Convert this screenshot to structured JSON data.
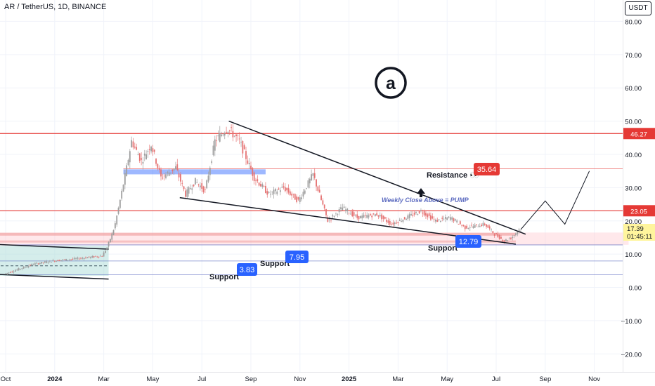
{
  "header": {
    "symbol": "AR / TetherUS, 1D, BINANCE",
    "currency_button": "USDT"
  },
  "colors": {
    "red": "#e53935",
    "blue": "#2962ff",
    "candle_up": "#9e9e9e",
    "candle_down": "#e57373",
    "grid": "#f0f3fa",
    "text": "#131722",
    "price_tag": "#fff59d"
  },
  "logo": {
    "icon": "arweave-logo",
    "glyph": "a"
  },
  "chart_data": {
    "type": "candlestick",
    "x_ticks": [
      "Oct",
      "2024",
      "Mar",
      "May",
      "Jul",
      "Sep",
      "Nov",
      "2025",
      "Mar",
      "May",
      "Jul",
      "Sep",
      "Nov"
    ],
    "y_ticks": [
      "80.00",
      "70.00",
      "60.00",
      "50.00",
      "40.00",
      "30.00",
      "20.00",
      "10.00",
      "0.00",
      "−10.00",
      "−20.00"
    ],
    "ylim": [
      -25,
      86
    ],
    "price_series": [
      {
        "x": 0,
        "y": 4
      },
      {
        "x": 0.3,
        "y": 5.5
      },
      {
        "x": 0.6,
        "y": 7
      },
      {
        "x": 1.0,
        "y": 8
      },
      {
        "x": 1.4,
        "y": 8.5
      },
      {
        "x": 1.7,
        "y": 9
      },
      {
        "x": 2.0,
        "y": 9.5
      },
      {
        "x": 2.1,
        "y": 12
      },
      {
        "x": 2.25,
        "y": 18
      },
      {
        "x": 2.35,
        "y": 25
      },
      {
        "x": 2.5,
        "y": 36
      },
      {
        "x": 2.6,
        "y": 44
      },
      {
        "x": 2.8,
        "y": 38
      },
      {
        "x": 3.0,
        "y": 43
      },
      {
        "x": 3.2,
        "y": 33
      },
      {
        "x": 3.5,
        "y": 36
      },
      {
        "x": 3.7,
        "y": 28
      },
      {
        "x": 3.9,
        "y": 32
      },
      {
        "x": 4.1,
        "y": 29
      },
      {
        "x": 4.3,
        "y": 44
      },
      {
        "x": 4.55,
        "y": 48
      },
      {
        "x": 4.8,
        "y": 44
      },
      {
        "x": 5.1,
        "y": 33
      },
      {
        "x": 5.4,
        "y": 28
      },
      {
        "x": 5.7,
        "y": 30
      },
      {
        "x": 6.0,
        "y": 26
      },
      {
        "x": 6.3,
        "y": 34
      },
      {
        "x": 6.6,
        "y": 20
      },
      {
        "x": 6.9,
        "y": 24
      },
      {
        "x": 7.2,
        "y": 21
      },
      {
        "x": 7.6,
        "y": 22
      },
      {
        "x": 7.9,
        "y": 19
      },
      {
        "x": 8.2,
        "y": 21
      },
      {
        "x": 8.5,
        "y": 23
      },
      {
        "x": 8.8,
        "y": 20
      },
      {
        "x": 9.1,
        "y": 21
      },
      {
        "x": 9.4,
        "y": 18
      },
      {
        "x": 9.8,
        "y": 19
      },
      {
        "x": 10.0,
        "y": 16
      },
      {
        "x": 10.2,
        "y": 14
      },
      {
        "x": 10.35,
        "y": 15
      },
      {
        "x": 10.5,
        "y": 17.39
      }
    ],
    "projection": [
      {
        "x": 10.5,
        "y": 17.39
      },
      {
        "x": 11.0,
        "y": 26
      },
      {
        "x": 11.4,
        "y": 19
      },
      {
        "x": 11.9,
        "y": 35
      }
    ],
    "wedge_upper": [
      {
        "x": 4.55,
        "y": 50
      },
      {
        "x": 10.6,
        "y": 16
      }
    ],
    "wedge_lower": [
      {
        "x": 3.55,
        "y": 27
      },
      {
        "x": 10.4,
        "y": 13
      }
    ],
    "channel_top": [
      {
        "x": -0.3,
        "y": 13
      },
      {
        "x": 2.1,
        "y": 11.5
      }
    ],
    "channel_bottom": [
      {
        "x": -0.3,
        "y": 4
      },
      {
        "x": 2.1,
        "y": 2.5
      }
    ],
    "demand_zone": {
      "x0": -0.3,
      "x1": 2.1,
      "y_top": 12.5,
      "y_bottom": 3.5
    },
    "resistance_zone_blue": {
      "x0": 2.4,
      "x1": 5.3,
      "y_low": 34,
      "y_high": 35.5
    },
    "support_zone_red": {
      "x0": -0.3,
      "x1": 12.7,
      "y_low": 12.8,
      "y_high": 16.5
    },
    "horizontal_levels": [
      {
        "value": 46.27,
        "label": "46.27",
        "color": "red",
        "style": "solid",
        "from_x": -0.3
      },
      {
        "value": 35.64,
        "label": "35.64",
        "color": "red",
        "style": "thin",
        "from_x": 2.4
      },
      {
        "value": 23.05,
        "label": "23.05",
        "color": "red",
        "style": "solid",
        "from_x": -0.3
      },
      {
        "value": 12.79,
        "label": "12.79",
        "color": "blue",
        "style": "thin",
        "from_x": 0
      },
      {
        "value": 7.95,
        "label": "7.95",
        "color": "blue",
        "style": "thin",
        "from_x": -0.3
      },
      {
        "value": 3.83,
        "label": "3.83",
        "color": "blue",
        "style": "thin",
        "from_x": -0.3
      }
    ],
    "current_price": {
      "value": 17.39,
      "label": "17.39",
      "countdown": "01:45:11"
    },
    "annotations": {
      "resistance_label": "Resistance 👀",
      "weekly_close": "Weekly Close Above = PUMP",
      "support_labels": [
        "Support",
        "Support",
        "Support"
      ]
    }
  }
}
